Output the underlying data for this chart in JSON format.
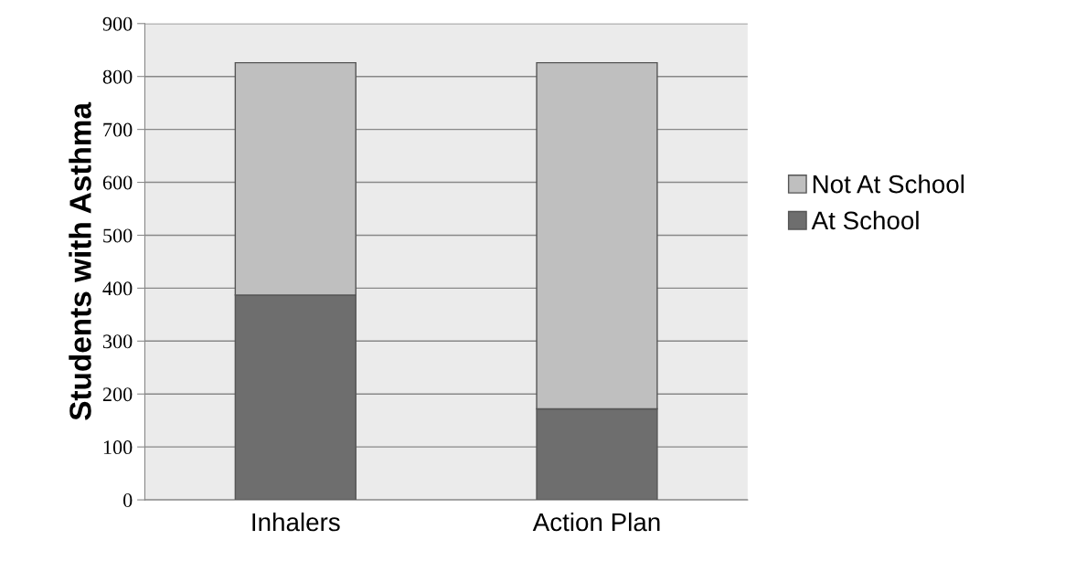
{
  "chart_data": {
    "type": "bar",
    "stacked": true,
    "ylabel": "Students with Asthma",
    "categories": [
      "Inhalers",
      "Action Plan"
    ],
    "series": [
      {
        "name": "At School",
        "color": "#6e6e6e",
        "values": [
          387,
          172
        ]
      },
      {
        "name": "Not At School",
        "color": "#bfbfbf",
        "values": [
          439,
          654
        ]
      }
    ],
    "ylim": [
      0,
      900
    ],
    "yticks": [
      0,
      100,
      200,
      300,
      400,
      500,
      600,
      700,
      800,
      900
    ],
    "grid": "y",
    "legend": "right"
  }
}
